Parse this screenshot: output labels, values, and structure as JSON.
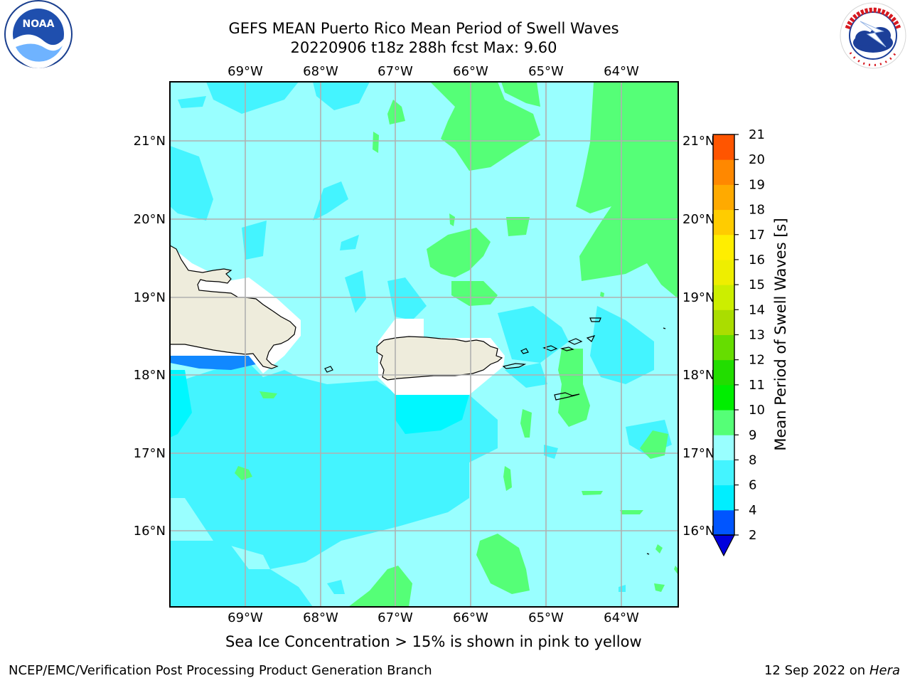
{
  "title": {
    "line1": "GEFS MEAN Puerto Rico Mean Period of Swell Waves",
    "line2": "20220906 t18z 288h fcst   Max: 9.60"
  },
  "logos": {
    "noaa": "NOAA",
    "noaa_ring": "NATIONAL OCEANIC AND ATMOSPHERIC ADMINISTRATION · U.S. DEPARTMENT OF COMMERCE",
    "nws_ring": "NATIONAL WEATHER SERVICE"
  },
  "map": {
    "lon_labels": [
      "69°W",
      "68°W",
      "67°W",
      "66°W",
      "65°W",
      "64°W"
    ],
    "lat_labels": [
      "21°N",
      "20°N",
      "19°N",
      "18°N",
      "17°N",
      "16°N"
    ],
    "land_color": "#eeecdc",
    "background_period_s": "8-9",
    "grid": true
  },
  "colorbar": {
    "label": "Mean Period of Swell Waves [s]",
    "ticks": [
      "2",
      "4",
      "6",
      "8",
      "9",
      "10",
      "11",
      "12",
      "13",
      "14",
      "15",
      "16",
      "17",
      "18",
      "19",
      "20",
      "21"
    ],
    "colors": [
      "#0055ff",
      "#00eeff",
      "#44f4ff",
      "#99ffff",
      "#55ff77",
      "#00ee00",
      "#22dd00",
      "#66dd00",
      "#aadd00",
      "#ccee00",
      "#eeee00",
      "#ffee00",
      "#ffcc00",
      "#ffaa00",
      "#ff8800",
      "#ff5500",
      "#ff2200",
      "#ff0000"
    ],
    "extend_min_color": "#0000dd"
  },
  "footer": {
    "ice_note": "Sea Ice Concentration > 15% is shown in pink to yellow",
    "credit": "NCEP/EMC/Verification Post Processing Product Generation Branch",
    "date": "12 Sep 2022 on",
    "host": "Hera"
  }
}
